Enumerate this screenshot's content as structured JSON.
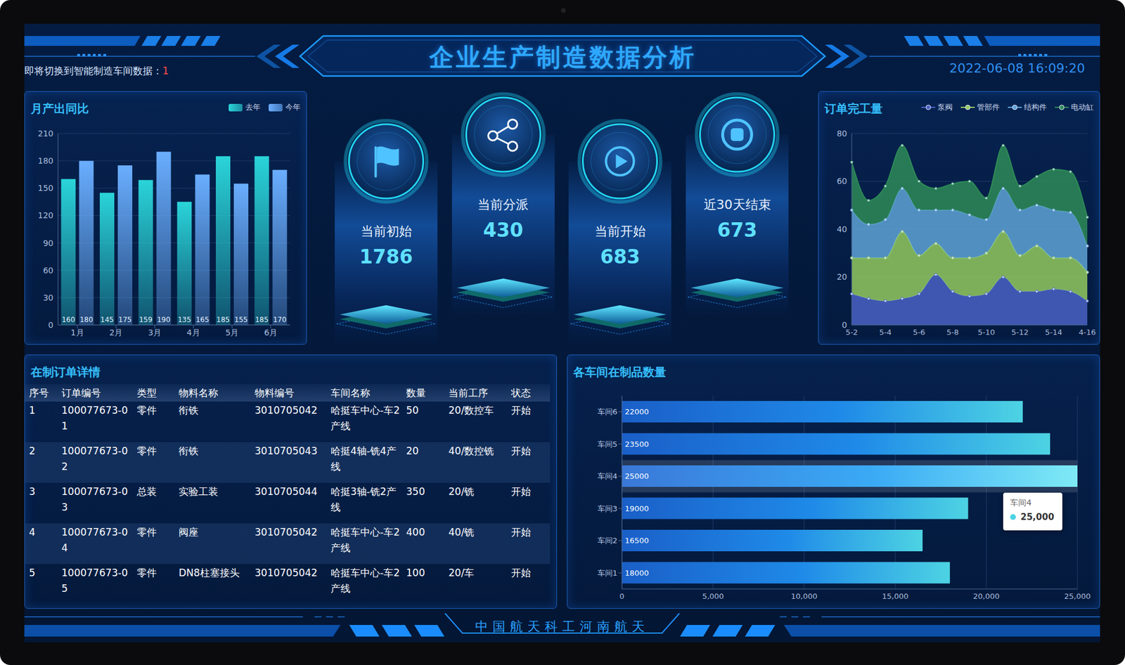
{
  "header": {
    "title": "企业生产制造数据分析",
    "notice": "即将切换到智能制造车间数据：",
    "notice_value": 1,
    "datetime": "2022-06-08 16:09:20"
  },
  "kpis": [
    {
      "label": "当前初始",
      "value": 1786
    },
    {
      "label": "当前分派",
      "value": 430
    },
    {
      "label": "当前开始",
      "value": 683
    },
    {
      "label": "近30天结束",
      "value": 673
    }
  ],
  "table": {
    "title": "在制订单详情",
    "columns": [
      "序号",
      "订单编号",
      "类型",
      "物料名称",
      "物料编号",
      "车间名称",
      "数量",
      "当前工序",
      "状态"
    ],
    "rows": [
      [
        1,
        "100077673-01",
        "零件",
        "衔铁",
        "3010705042",
        "哈挺车中心-车2产线",
        50,
        "20/数控车",
        "开始"
      ],
      [
        2,
        "100077673-02",
        "零件",
        "衔铁",
        "3010705043",
        "哈挺4轴-铣4产线",
        20,
        "40/数控铣",
        "开始"
      ],
      [
        3,
        "100077673-03",
        "总装",
        "实验工装",
        "3010705044",
        "哈挺3轴-铣2产线",
        350,
        "20/铣",
        "开始"
      ],
      [
        4,
        "100077673-04",
        "零件",
        "阀座",
        "3010705042",
        "哈挺车中心-车2产线",
        400,
        "40/铣",
        "开始"
      ],
      [
        5,
        "100077673-05",
        "零件",
        "DN8柱塞接头",
        "3010705042",
        "哈挺车中心-车2产线",
        100,
        "20/车",
        "开始"
      ]
    ]
  },
  "footer": "中国航天科工河南航天",
  "chart_data": [
    {
      "type": "bar",
      "title": "月产出同比",
      "categories": [
        "1月",
        "2月",
        "3月",
        "4月",
        "5月",
        "6月"
      ],
      "series": [
        {
          "name": "去年",
          "color": "#2ad4d9",
          "values": [
            160,
            145,
            159,
            135,
            185,
            185
          ]
        },
        {
          "name": "今年",
          "color": "#6aaeff",
          "values": [
            180,
            175,
            190,
            165,
            155,
            170
          ]
        }
      ],
      "ylim": [
        0,
        210
      ],
      "yticks": [
        0,
        30,
        60,
        90,
        120,
        150,
        180,
        210
      ],
      "grid": true,
      "legend": "upper right",
      "data_labels": true
    },
    {
      "type": "area",
      "title": "订单完工量",
      "stacked": true,
      "categories": [
        "5-2",
        null,
        "5-4",
        null,
        "5-6",
        null,
        "5-8",
        null,
        "5-10",
        null,
        "5-12",
        null,
        "5-14",
        null,
        "4-16"
      ],
      "series": [
        {
          "name": "泵阀",
          "color": "#4a62c4",
          "values": [
            13,
            11,
            10,
            11,
            13,
            21,
            14,
            12,
            13,
            20,
            14,
            14,
            15,
            14,
            10
          ]
        },
        {
          "name": "管部件",
          "color": "#93c95f",
          "values": [
            15,
            17,
            18,
            28,
            16,
            13,
            14,
            16,
            17,
            19,
            15,
            19,
            13,
            14,
            12
          ]
        },
        {
          "name": "结构件",
          "color": "#5fa3d6",
          "values": [
            20,
            14,
            16,
            18,
            19,
            14,
            20,
            18,
            14,
            18,
            19,
            17,
            20,
            19,
            11
          ]
        },
        {
          "name": "电动缸",
          "color": "#2e8b57",
          "values": [
            20,
            10,
            14,
            18,
            12,
            9,
            11,
            14,
            9,
            18,
            10,
            12,
            17,
            17,
            12
          ]
        }
      ],
      "ylim": [
        0,
        80
      ],
      "yticks": [
        0,
        20,
        40,
        60,
        80
      ],
      "grid": true,
      "legend": "upper right",
      "marker": "circle"
    },
    {
      "type": "bar",
      "orientation": "horizontal",
      "title": "各车间在制品数量",
      "categories": [
        "车间1",
        "车间2",
        "车间3",
        "车间4",
        "车间5",
        "车间6"
      ],
      "values": [
        18000,
        16500,
        19000,
        25000,
        23500,
        22000
      ],
      "color": "#4dd3e3",
      "xlim": [
        0,
        25000
      ],
      "xticks": [
        0,
        {
          "value": 5000,
          "label": "5,000"
        },
        {
          "value": 10000,
          "label": "10,000"
        },
        {
          "value": 15000,
          "label": "15,000"
        },
        {
          "value": 20000,
          "label": "20,000"
        },
        {
          "value": 25000,
          "label": "25,000"
        }
      ],
      "grid": true,
      "data_labels": true,
      "annotation": {
        "category": "车间4",
        "label": "25,000"
      }
    }
  ]
}
